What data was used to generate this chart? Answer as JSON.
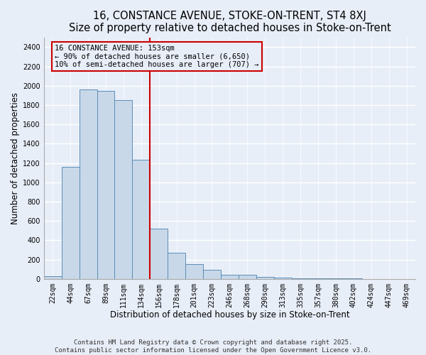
{
  "title": "16, CONSTANCE AVENUE, STOKE-ON-TRENT, ST4 8XJ",
  "subtitle": "Size of property relative to detached houses in Stoke-on-Trent",
  "xlabel": "Distribution of detached houses by size in Stoke-on-Trent",
  "ylabel": "Number of detached properties",
  "bin_labels": [
    "22sqm",
    "44sqm",
    "67sqm",
    "89sqm",
    "111sqm",
    "134sqm",
    "156sqm",
    "178sqm",
    "201sqm",
    "223sqm",
    "246sqm",
    "268sqm",
    "290sqm",
    "313sqm",
    "335sqm",
    "357sqm",
    "380sqm",
    "402sqm",
    "424sqm",
    "447sqm",
    "469sqm"
  ],
  "bar_heights": [
    25,
    1160,
    1960,
    1950,
    1850,
    1230,
    520,
    270,
    155,
    90,
    45,
    40,
    20,
    10,
    5,
    3,
    2,
    2,
    1,
    1,
    1
  ],
  "bar_color": "#c8d8e8",
  "bar_edge_color": "#5b8db8",
  "highlight_index": 6,
  "red_line_color": "#cc0000",
  "annotation_line1": "16 CONSTANCE AVENUE: 153sqm",
  "annotation_line2": "← 90% of detached houses are smaller (6,650)",
  "annotation_line3": "10% of semi-detached houses are larger (707) →",
  "ylim": [
    0,
    2500
  ],
  "yticks": [
    0,
    200,
    400,
    600,
    800,
    1000,
    1200,
    1400,
    1600,
    1800,
    2000,
    2200,
    2400
  ],
  "background_color": "#e8eef8",
  "grid_color": "#d0d8e8",
  "footnote": "Contains HM Land Registry data © Crown copyright and database right 2025.\nContains public sector information licensed under the Open Government Licence v3.0.",
  "title_fontsize": 10.5,
  "xlabel_fontsize": 8.5,
  "ylabel_fontsize": 8.5,
  "tick_fontsize": 7,
  "annotation_fontsize": 7.5,
  "footnote_fontsize": 6.5,
  "bar_width": 1.0
}
